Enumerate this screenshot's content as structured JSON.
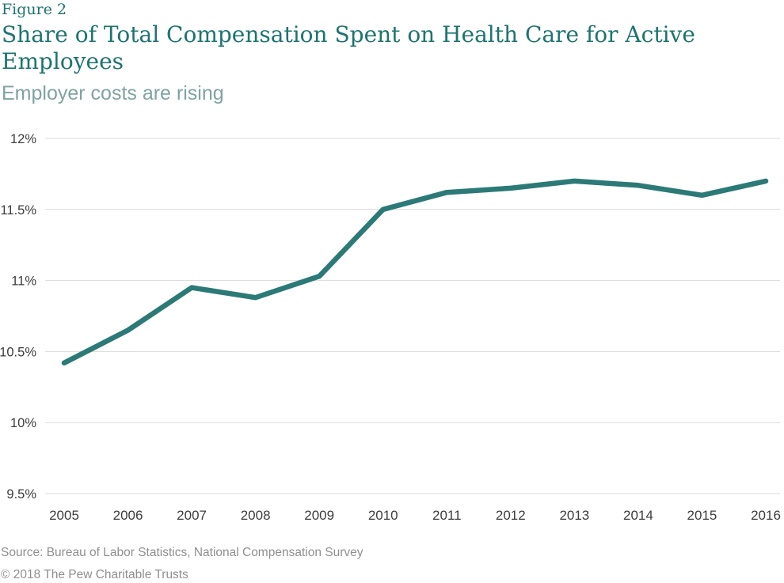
{
  "figure_label": "Figure 2",
  "title": {
    "text": "Share of Total Compensation Spent on Health Care for Active Employees",
    "lines": [
      "Share of Total Compensation Spent on Health Care for Active",
      "Employees"
    ]
  },
  "subtitle": "Employer costs are rising",
  "footer": {
    "source": "Source: Bureau of Labor Statistics, National Compensation Survey",
    "copyright": "© 2018 The Pew Charitable Trusts"
  },
  "colors": {
    "title_teal": "#1d746f",
    "subtitle_teal": "#7fa3a1",
    "line": "#2c7a77",
    "grid": "#d9d9d9",
    "axis_text": "#3d3d3d",
    "footer_gray": "#8f8f8f"
  },
  "chart_data": {
    "type": "line",
    "title": "Share of Total Compensation Spent on Health Care for Active Employees",
    "subtitle": "Employer costs are rising",
    "x": [
      "2005",
      "2006",
      "2007",
      "2008",
      "2009",
      "2010",
      "2011",
      "2012",
      "2013",
      "2014",
      "2015",
      "2016"
    ],
    "values": [
      10.42,
      10.65,
      10.95,
      10.88,
      11.03,
      11.5,
      11.62,
      11.65,
      11.7,
      11.67,
      11.6,
      11.7
    ],
    "series": [
      {
        "name": "Share of total compensation spent on health care",
        "values": [
          10.42,
          10.65,
          10.95,
          10.88,
          11.03,
          11.5,
          11.62,
          11.65,
          11.7,
          11.67,
          11.6,
          11.7
        ]
      }
    ],
    "xlabel": "",
    "ylabel": "",
    "ylim": [
      9.5,
      12
    ],
    "yticks": [
      12,
      11.5,
      11,
      10.5,
      10,
      9.5
    ],
    "ytick_labels": [
      "12%",
      "11.5%",
      "11%",
      "10.5%",
      "10%",
      "9.5%"
    ],
    "grid": "horizontal-only",
    "legend": "none",
    "line_color": "#2c7a77"
  }
}
